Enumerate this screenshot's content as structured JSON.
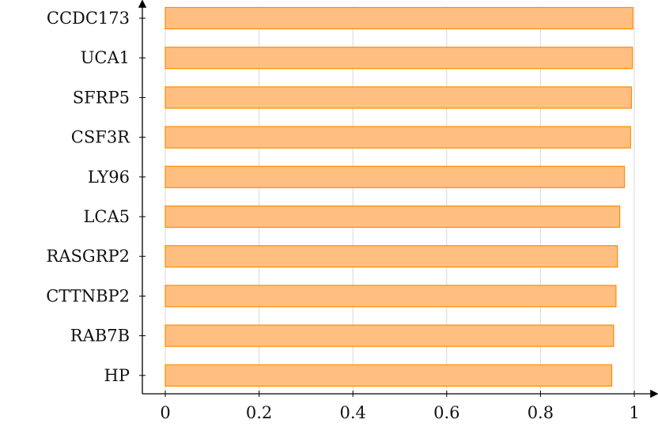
{
  "chart_data": {
    "type": "bar",
    "orientation": "horizontal",
    "categories": [
      "CCDC173",
      "UCA1",
      "SFRP5",
      "CSF3R",
      "LY96",
      "LCA5",
      "RASGRP2",
      "CTTNBP2",
      "RAB7B",
      "HP"
    ],
    "values": [
      0.997,
      0.996,
      0.994,
      0.992,
      0.979,
      0.969,
      0.964,
      0.961,
      0.956,
      0.952
    ],
    "xlim": [
      0,
      1
    ],
    "xticks": [
      0,
      0.2,
      0.4,
      0.6,
      0.8,
      1
    ],
    "xtick_labels": [
      "0",
      "0.2",
      "0.4",
      "0.6",
      "0.8",
      "1"
    ],
    "grid": "vertical",
    "colors": {
      "bar_fill": "#ffbf80",
      "bar_stroke": "#ff8c00"
    }
  }
}
